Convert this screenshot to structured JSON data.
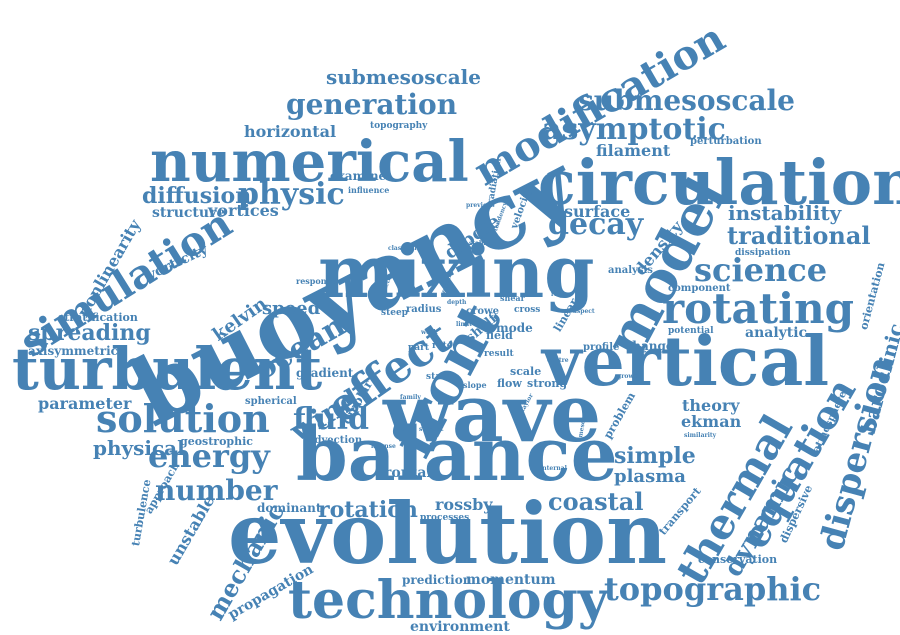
{
  "color": "#4682b4",
  "words": [
    "buoyancy",
    "mixing",
    "wave",
    "evolution",
    "balance",
    "front",
    "vertical",
    "circulation",
    "numerical",
    "turbulent",
    "model",
    "technology",
    "modification",
    "simulation",
    "thermal",
    "equation",
    "rotating",
    "effect",
    "submesoscale",
    "generation",
    "asymptotic",
    "solution",
    "science",
    "topographic",
    "energy",
    "decay",
    "fluid",
    "traditional",
    "wind",
    "instability",
    "dispersion",
    "physic",
    "ocean",
    "number",
    "dynamic",
    "diffusion",
    "baroclinic",
    "spreading",
    "coastal",
    "rotation",
    "simple",
    "plasma",
    "rossby",
    "mechanic",
    "physical",
    "theory",
    "ekman",
    "parameter",
    "vortices",
    "structure",
    "nonlinearity",
    "horizontal",
    "filament",
    "surface",
    "density",
    "dipole",
    "speed",
    "kelvin",
    "vorticity",
    "axisymmetric",
    "stratification",
    "analytic",
    "component",
    "unstable",
    "propagation",
    "momentum",
    "prediction",
    "environment",
    "conservation",
    "transport",
    "frontal",
    "dipolar",
    "gradient",
    "examine",
    "orientation",
    "atmosphere",
    "dispersive",
    "perturbation",
    "dissipation",
    "analysis",
    "approach",
    "turbulence",
    "geostrophic",
    "advection",
    "spherical",
    "dominant",
    "processes",
    "problem",
    "change",
    "profile",
    "potential",
    "linear",
    "shelf",
    "mode",
    "crowe",
    "radius",
    "steep",
    "field",
    "scale",
    "flow",
    "strong",
    "result",
    "slope",
    "state",
    "part",
    "rate",
    "shear",
    "cross",
    "radiation",
    "velocity",
    "tendency",
    "topography",
    "influence",
    "previous",
    "classical",
    "stability",
    "response",
    "region",
    "growth",
    "similarity",
    "internal",
    "mesoscale",
    "taylor",
    "intense",
    "subject",
    "family",
    "work",
    "depth",
    "range",
    "aspect",
    "centre",
    "viscosity",
    "kinetic",
    "limit"
  ]
}
